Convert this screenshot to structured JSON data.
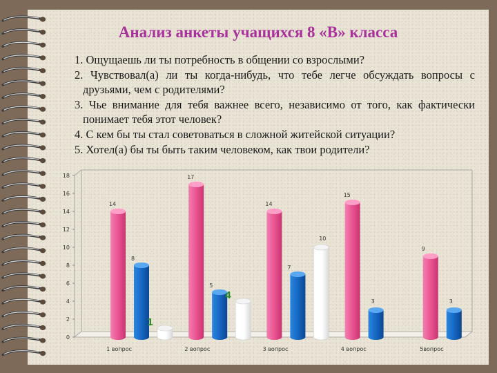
{
  "title": "Анализ анкеты учащихся 8 «В» класса",
  "questions": [
    "1. Ощущаешь ли ты потребность в общении со взрослыми?",
    "2. Чувствовал(а) ли ты когда-нибудь, что тебе легче обсуждать вопросы с друзьями, чем с родителями?",
    "3. Чье внимание для тебя важнее всего, независимо от того, как фактически понимает тебя этот человек?",
    "4. С кем бы ты стал советоваться в сложной житейской ситуации?",
    "5. Хотел(а) бы ты быть таким человеком, как твои родители?"
  ],
  "chart_data": {
    "type": "bar",
    "categories": [
      "1 вопрос",
      "2 вопрос",
      "3 вопрос",
      "4 вопрос",
      "5вопрос"
    ],
    "series": [
      {
        "values": [
          14,
          17,
          14,
          15,
          9
        ],
        "color": "#e8508e"
      },
      {
        "values": [
          8,
          5,
          7,
          3,
          3
        ],
        "color": "#1565c0"
      },
      {
        "values": [
          1,
          4,
          10,
          null,
          null
        ],
        "color": "#ffffff"
      }
    ],
    "ylim": [
      0,
      18
    ],
    "yticks": [
      0,
      2,
      4,
      6,
      8,
      10,
      12,
      14,
      16,
      18
    ],
    "grid": false,
    "legend": "none"
  }
}
